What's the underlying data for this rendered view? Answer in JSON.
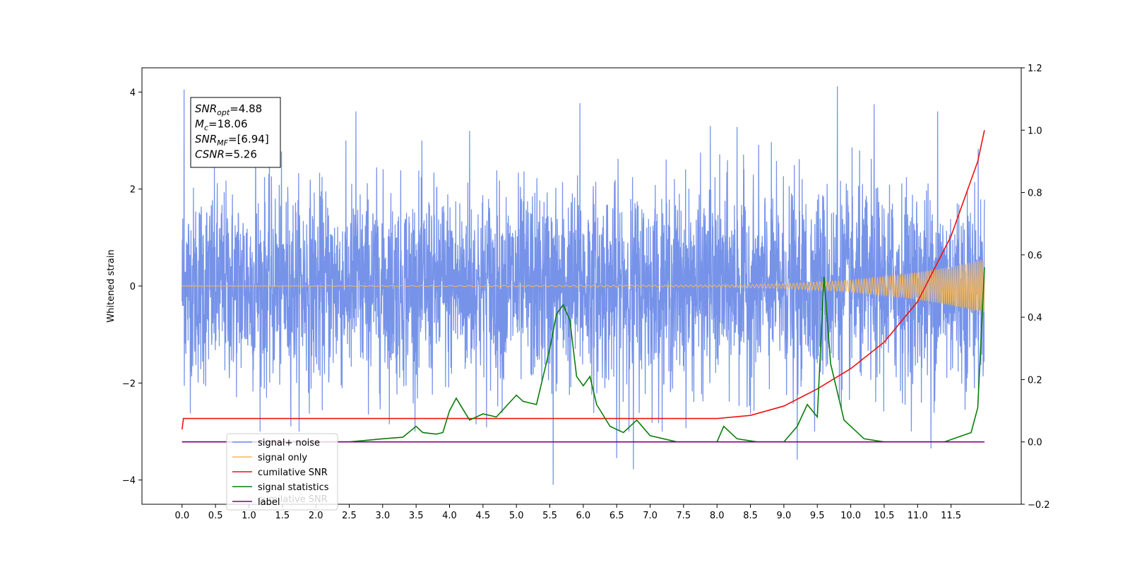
{
  "chart_data": {
    "type": "line",
    "xlabel": "",
    "ylabel": "Whitened strain",
    "xlim": [
      -0.6,
      12.55
    ],
    "ylim_left": [
      -4.5,
      4.5
    ],
    "ylim_right": [
      -0.2,
      1.2
    ],
    "x_ticks": [
      0.0,
      0.5,
      1.0,
      1.5,
      2.0,
      2.5,
      3.0,
      3.5,
      4.0,
      4.5,
      5.0,
      5.5,
      6.0,
      6.5,
      7.0,
      7.5,
      8.0,
      8.5,
      9.0,
      9.5,
      10.0,
      10.5,
      11.0,
      11.5
    ],
    "x_tick_labels": [
      "0.0",
      "0.5",
      "1.0",
      "1.5",
      "2.0",
      "2.5",
      "3.0",
      "3.5",
      "4.0",
      "4.5",
      "5.0",
      "5.5",
      "6.0",
      "6.5",
      "7.0",
      "7.5",
      "8.0",
      "8.5",
      "9.0",
      "9.5",
      "10.0",
      "10.5",
      "11.0",
      "11.5"
    ],
    "y_left_ticks": [
      4,
      2,
      0,
      -2,
      -4
    ],
    "y_left_tick_labels": [
      "4",
      "2",
      "0",
      "−2",
      "−4"
    ],
    "y_right_ticks": [
      1.2,
      1.0,
      0.8,
      0.6,
      0.4,
      0.2,
      0.0,
      -0.2
    ],
    "y_right_tick_labels": [
      "1.2",
      "1.0",
      "0.8",
      "0.6",
      "0.4",
      "0.2",
      "0.0",
      "−0.2"
    ],
    "grid": false,
    "legend_position": "bottom-left",
    "series": [
      {
        "name": "signal+ noise",
        "axis": "left",
        "color": "#6f8de8",
        "kind": "noise",
        "t_range": [
          0.0,
          12.0
        ],
        "amplitude_typical": 1.0,
        "peaks": [
          {
            "x": 0.03,
            "y": 4.05
          },
          {
            "x": 5.55,
            "y": -4.1
          },
          {
            "x": 5.95,
            "y": 3.77
          },
          {
            "x": 6.75,
            "y": -3.78
          },
          {
            "x": 9.8,
            "y": 4.12
          },
          {
            "x": 9.2,
            "y": -3.58
          },
          {
            "x": 11.3,
            "y": 3.6
          },
          {
            "x": 11.2,
            "y": -3.35
          },
          {
            "x": 2.6,
            "y": 3.6
          },
          {
            "x": 1.1,
            "y": 3.45
          },
          {
            "x": 6.5,
            "y": -3.55
          },
          {
            "x": 10.35,
            "y": 3.75
          },
          {
            "x": 7.9,
            "y": 3.3
          },
          {
            "x": 8.3,
            "y": 3.28
          },
          {
            "x": 4.3,
            "y": 3.2
          }
        ]
      },
      {
        "name": "signal only",
        "axis": "left",
        "color": "#f5b75a",
        "kind": "chirp",
        "t_range": [
          0.0,
          12.0
        ],
        "envelope": [
          [
            0.0,
            0.0
          ],
          [
            8.0,
            0.02
          ],
          [
            9.0,
            0.05
          ],
          [
            10.0,
            0.12
          ],
          [
            11.0,
            0.28
          ],
          [
            11.5,
            0.4
          ],
          [
            12.0,
            0.55
          ]
        ]
      },
      {
        "name": "cumilative SNR",
        "axis": "right",
        "color": "#ee1111",
        "x": [
          0.0,
          0.02,
          0.05,
          8.0,
          8.5,
          9.0,
          9.5,
          10.0,
          10.5,
          11.0,
          11.5,
          11.9,
          12.0
        ],
        "y": [
          0.04,
          0.075,
          0.075,
          0.075,
          0.085,
          0.115,
          0.17,
          0.235,
          0.32,
          0.45,
          0.66,
          0.9,
          1.0
        ]
      },
      {
        "name": "signal statistics",
        "axis": "right",
        "color": "#0a7d0a",
        "x": [
          0.0,
          1.0,
          2.0,
          2.5,
          3.0,
          3.3,
          3.5,
          3.6,
          3.8,
          3.9,
          4.0,
          4.1,
          4.3,
          4.5,
          4.7,
          5.0,
          5.1,
          5.3,
          5.5,
          5.6,
          5.7,
          5.8,
          5.9,
          6.0,
          6.1,
          6.2,
          6.4,
          6.6,
          6.8,
          7.0,
          7.4,
          8.0,
          8.1,
          8.3,
          8.6,
          9.0,
          9.2,
          9.35,
          9.5,
          9.6,
          9.7,
          9.9,
          10.2,
          10.5,
          11.0,
          11.4,
          11.8,
          11.9,
          12.0
        ],
        "y": [
          0.0,
          0.0,
          0.0,
          0.0,
          0.01,
          0.015,
          0.05,
          0.03,
          0.025,
          0.03,
          0.1,
          0.14,
          0.07,
          0.09,
          0.08,
          0.15,
          0.13,
          0.12,
          0.3,
          0.41,
          0.44,
          0.39,
          0.21,
          0.18,
          0.21,
          0.12,
          0.05,
          0.03,
          0.07,
          0.02,
          0.0,
          0.0,
          0.05,
          0.01,
          0.0,
          0.0,
          0.05,
          0.12,
          0.08,
          0.53,
          0.25,
          0.07,
          0.01,
          0.0,
          0.0,
          0.0,
          0.03,
          0.11,
          0.56
        ]
      },
      {
        "name": "label",
        "axis": "right",
        "color": "#800080",
        "x": [
          0.0,
          12.0
        ],
        "y": [
          0.0,
          0.0
        ]
      }
    ],
    "legend": {
      "entries": [
        "signal+ noise",
        "signal only",
        "cumilative SNR",
        "signal statistics",
        "label"
      ],
      "colors": [
        "#6f8de8",
        "#f5b75a",
        "#ee1111",
        "#0a7d0a",
        "#800080"
      ],
      "hidden_text": "cumilative SNR"
    },
    "annotation": {
      "lines": [
        {
          "sym": "SNR",
          "sub": "opt",
          "val": "=4.88"
        },
        {
          "sym": "M",
          "sub": "c",
          "val": "=18.06"
        },
        {
          "sym": "SNR",
          "sub": "MF",
          "val": "=[6.94]"
        },
        {
          "sym": "CSNR",
          "sub": "",
          "val": "=5.26"
        }
      ]
    }
  }
}
